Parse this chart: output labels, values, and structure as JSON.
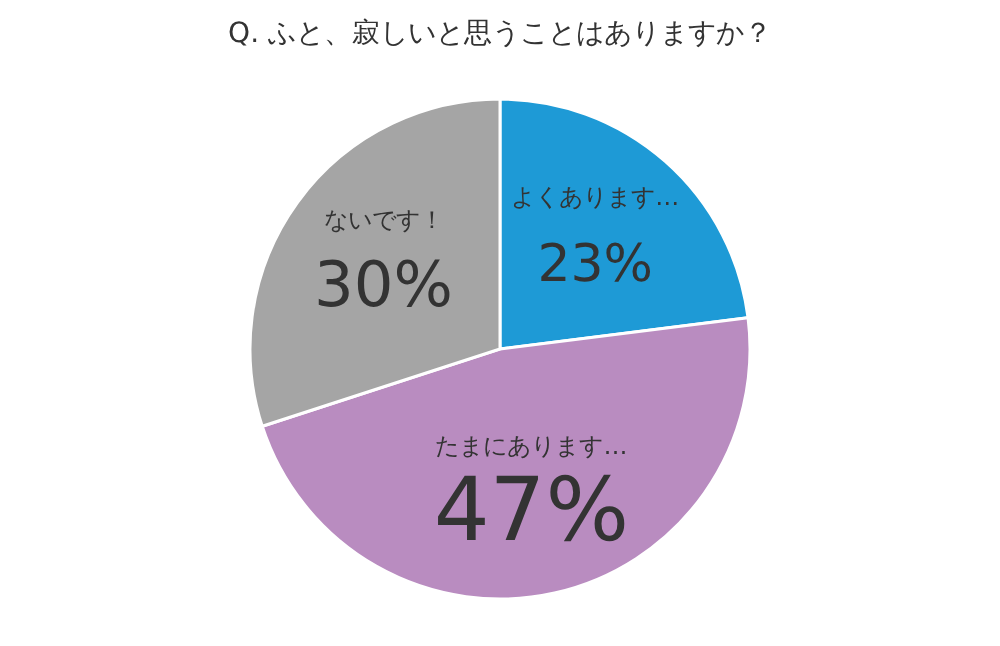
{
  "chart_data": {
    "type": "pie",
    "title": "Q. ふと、寂しいと思うことはありますか？",
    "categories": [
      "よくあります…",
      "たまにあります…",
      "ないです！"
    ],
    "values": [
      23,
      47,
      30
    ],
    "colors": [
      "#1e9ad6",
      "#b98cc0",
      "#a5a5a5"
    ],
    "value_labels": [
      "23%",
      "47%",
      "30%"
    ]
  }
}
